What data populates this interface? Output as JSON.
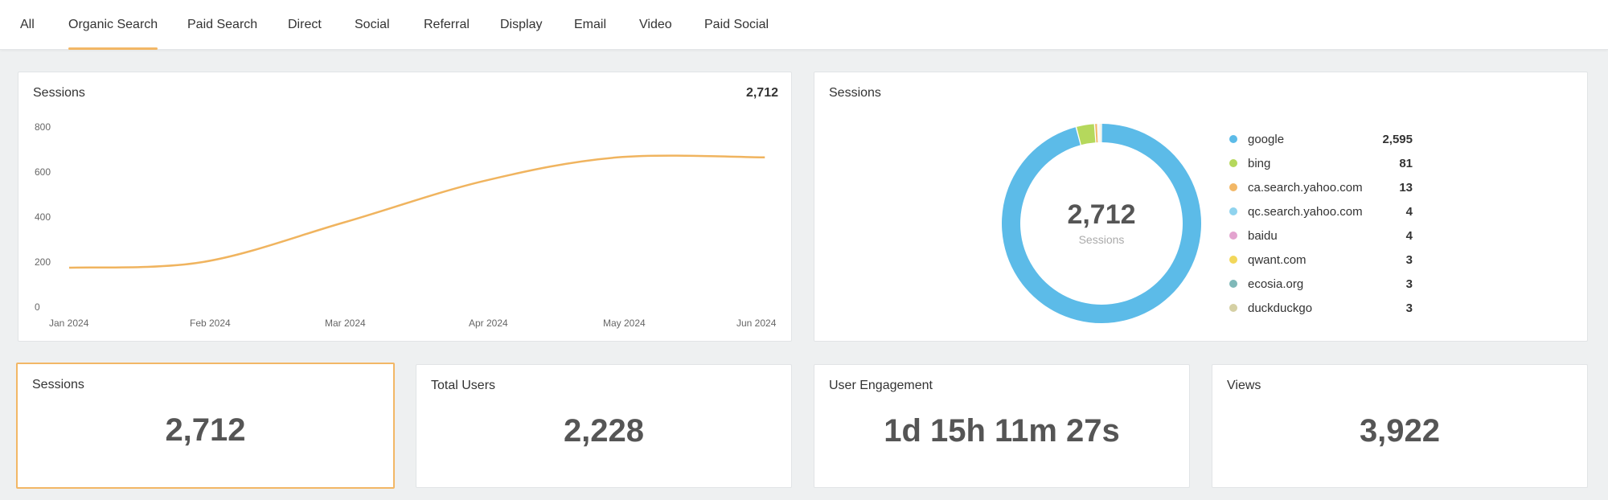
{
  "tabs": [
    {
      "label": "All",
      "active": false
    },
    {
      "label": "Organic Search",
      "active": true
    },
    {
      "label": "Paid Search",
      "active": false
    },
    {
      "label": "Direct",
      "active": false
    },
    {
      "label": "Social",
      "active": false
    },
    {
      "label": "Referral",
      "active": false
    },
    {
      "label": "Display",
      "active": false
    },
    {
      "label": "Email",
      "active": false
    },
    {
      "label": "Video",
      "active": false
    },
    {
      "label": "Paid Social",
      "active": false
    }
  ],
  "line_card": {
    "title": "Sessions",
    "total": "2,712"
  },
  "donut_card": {
    "title": "Sessions",
    "center_value": "2,712",
    "center_label": "Sessions"
  },
  "metrics": [
    {
      "title": "Sessions",
      "value": "2,712"
    },
    {
      "title": "Total Users",
      "value": "2,228"
    },
    {
      "title": "User Engagement",
      "value": "1d 15h 11m 27s"
    },
    {
      "title": "Views",
      "value": "3,922"
    }
  ],
  "colors": {
    "accent": "#f2b766",
    "line": "#f0b45f",
    "google": "#5cbbe8"
  },
  "chart_data": [
    {
      "type": "line",
      "title": "Sessions",
      "categories": [
        "Jan 2024",
        "Feb 2024",
        "Mar 2024",
        "Apr 2024",
        "May 2024",
        "Jun 2024"
      ],
      "x": [
        0,
        0.95,
        1.95,
        2.95,
        3.9,
        4.95
      ],
      "values": [
        175,
        200,
        375,
        560,
        665,
        665
      ],
      "ylim": [
        0,
        800
      ],
      "yticks": [
        0,
        200,
        400,
        600,
        800
      ],
      "grid": false
    },
    {
      "type": "pie",
      "title": "Sessions",
      "labels": [
        "google",
        "bing",
        "ca.search.yahoo.com",
        "qc.search.yahoo.com",
        "baidu",
        "qwant.com",
        "ecosia.org",
        "duckduckgo"
      ],
      "values": [
        2595,
        81,
        13,
        4,
        4,
        3,
        3,
        3
      ],
      "display_values": [
        "2,595",
        "81",
        "13",
        "4",
        "4",
        "3",
        "3",
        "3"
      ],
      "colors": [
        "#5cbbe8",
        "#b5d85c",
        "#f2b766",
        "#8fd3ee",
        "#e3a3cf",
        "#f2d75a",
        "#7fb8b8",
        "#d5d0a4"
      ],
      "legend": "right"
    }
  ]
}
